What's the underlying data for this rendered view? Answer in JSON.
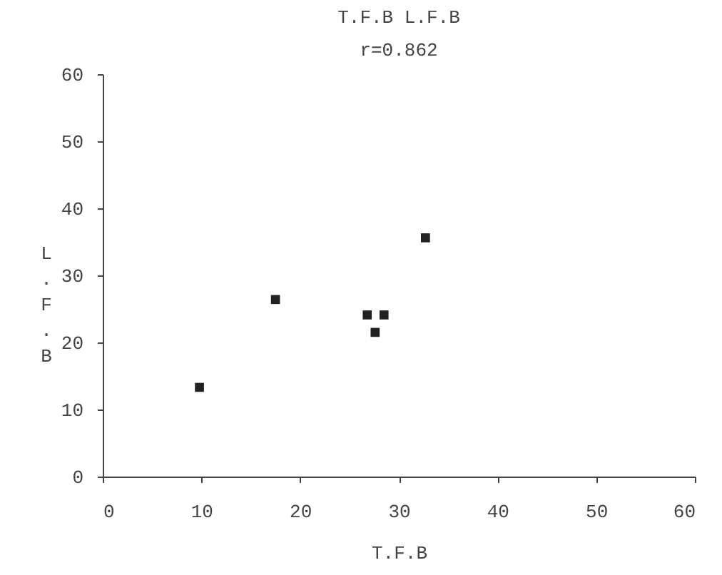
{
  "chart_data": {
    "type": "scatter",
    "title": "T.F.B  L.F.B",
    "xlabel": "T.F.B",
    "ylabel": "L.F.B",
    "annotations": [
      "r=0.862"
    ],
    "x": [
      9.8,
      17.5,
      26.8,
      28.5,
      27.6,
      32.7
    ],
    "values": [
      13.3,
      26.4,
      24.1,
      24.1,
      21.5,
      35.6
    ],
    "color": "#222222",
    "marker": "square",
    "grid": false,
    "xlim": [
      0,
      60
    ],
    "xticks": [
      0,
      10,
      20,
      30,
      40,
      50,
      60
    ],
    "ylim": [
      0,
      60
    ],
    "yticks": [
      0,
      10,
      20,
      30,
      40,
      50,
      60
    ]
  }
}
